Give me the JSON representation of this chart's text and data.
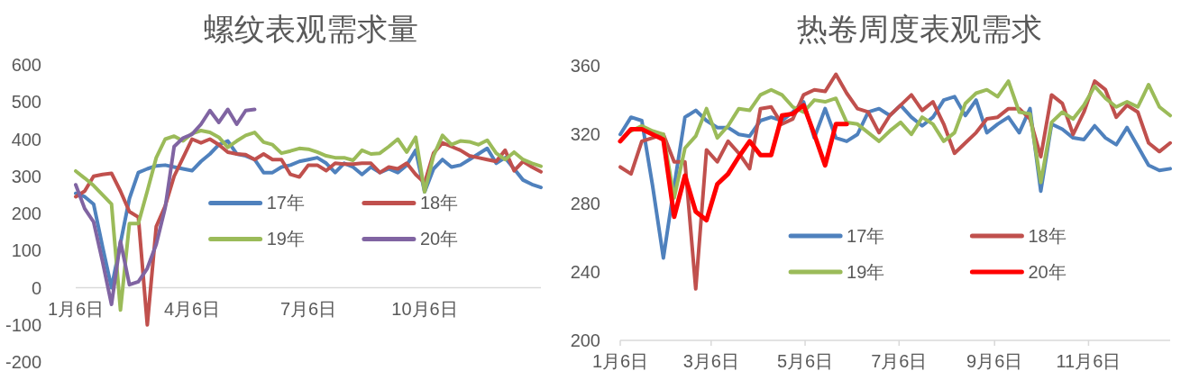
{
  "chart_data": [
    {
      "type": "line",
      "title": "螺纹表观需求量",
      "categories": [
        "1月6日",
        null,
        null,
        null,
        null,
        null,
        null,
        null,
        null,
        null,
        null,
        null,
        null,
        "4月6日",
        null,
        null,
        null,
        null,
        null,
        null,
        null,
        null,
        null,
        null,
        null,
        null,
        "7月6日",
        null,
        null,
        null,
        null,
        null,
        null,
        null,
        null,
        null,
        null,
        null,
        null,
        "10月6日",
        null,
        null,
        null,
        null,
        null,
        null,
        null,
        null,
        null,
        null,
        null,
        null,
        null
      ],
      "ylim": [
        -200,
        600
      ],
      "yticks": [
        -200,
        -100,
        0,
        100,
        200,
        300,
        400,
        500,
        600
      ],
      "legend": "right",
      "line_style": "solid",
      "series": [
        {
          "name": "17年",
          "color": "#4f81bd",
          "values": [
            254,
            245,
            225,
            110,
            0,
            120,
            240,
            310,
            320,
            328,
            330,
            325,
            320,
            315,
            340,
            360,
            385,
            395,
            360,
            355,
            345,
            310,
            310,
            325,
            330,
            340,
            345,
            350,
            335,
            310,
            335,
            325,
            305,
            325,
            310,
            320,
            310,
            330,
            370,
            258,
            320,
            345,
            325,
            330,
            345,
            360,
            375,
            335,
            350,
            320,
            290,
            278,
            270
          ]
        },
        {
          "name": "18年",
          "color": "#c0504d",
          "values": [
            245,
            260,
            300,
            305,
            308,
            260,
            205,
            190,
            -100,
            165,
            220,
            300,
            350,
            400,
            390,
            400,
            385,
            365,
            360,
            358,
            345,
            360,
            345,
            345,
            305,
            298,
            330,
            330,
            315,
            335,
            333,
            333,
            335,
            335,
            310,
            325,
            320,
            335,
            305,
            282,
            362,
            390,
            380,
            370,
            355,
            350,
            345,
            340,
            370,
            315,
            340,
            325,
            312
          ]
        },
        {
          "name": "19年",
          "color": "#9bbb59",
          "values": [
            314,
            295,
            275,
            250,
            225,
            -60,
            173,
            173,
            260,
            350,
            400,
            408,
            395,
            415,
            423,
            418,
            405,
            378,
            395,
            410,
            418,
            392,
            385,
            362,
            368,
            375,
            373,
            365,
            355,
            350,
            350,
            343,
            370,
            360,
            362,
            380,
            400,
            365,
            405,
            258,
            355,
            410,
            385,
            395,
            393,
            385,
            397,
            362,
            345,
            365,
            345,
            335,
            327
          ]
        },
        {
          "name": "20年",
          "color": "#8064a2",
          "values": [
            277,
            213,
            177,
            70,
            -45,
            125,
            8,
            16,
            52,
            117,
            215,
            380,
            403,
            413,
            440,
            477,
            445,
            480,
            440,
            477,
            480,
            null,
            null,
            null,
            null,
            null,
            null,
            null,
            null,
            null,
            null,
            null,
            null,
            null,
            null,
            null,
            null,
            null,
            null,
            null,
            null,
            null,
            null,
            null,
            null,
            null,
            null,
            null,
            null,
            null,
            null,
            null,
            null
          ]
        }
      ]
    },
    {
      "type": "line",
      "title": "热卷周度表观需求",
      "x": [
        "--01-06",
        "--01-13",
        "--01-20",
        "--01-27",
        "--02-03",
        "--02-10",
        "--02-17",
        "--02-24",
        "--03-03",
        "--03-10",
        "--03-17",
        "--03-24",
        "--03-31",
        "--04-07",
        "--04-14",
        "--04-21",
        "--04-28",
        "--05-05",
        "--05-12",
        "--05-19",
        "--05-26",
        "--06-02",
        "--06-09",
        "--06-16",
        "--06-23",
        "--06-30",
        "--07-07",
        "--07-14",
        "--07-21",
        "--07-28",
        "--08-04",
        "--08-11",
        "--08-18",
        "--08-25",
        "--09-01",
        "--09-08",
        "--09-15",
        "--09-22",
        "--09-29",
        "--10-06",
        "--10-13",
        "--10-20",
        "--10-27",
        "--11-03",
        "--11-10",
        "--11-17",
        "--11-24",
        "--12-01",
        "--12-08",
        "--12-15",
        "--12-22",
        "--12-29"
      ],
      "xlim": [
        "--01-06",
        "--12-29"
      ],
      "xticks": [
        {
          "value": "--01-06",
          "label": "1月6日"
        },
        {
          "value": "--03-06",
          "label": "3月6日"
        },
        {
          "value": "--05-06",
          "label": "5月6日"
        },
        {
          "value": "--07-06",
          "label": "7月6日"
        },
        {
          "value": "--09-06",
          "label": "9月6日"
        },
        {
          "value": "--11-06",
          "label": "11月6日"
        }
      ],
      "ylim": [
        200,
        360
      ],
      "yticks": [
        200,
        240,
        280,
        320,
        360
      ],
      "legend": "bottom",
      "line_style": "solid",
      "series": [
        {
          "name": "17年",
          "color": "#4f81bd",
          "values": [
            320,
            330,
            328,
            290,
            248,
            290,
            330,
            334,
            328,
            324,
            324,
            320,
            319,
            328,
            330,
            328,
            333,
            339,
            318,
            335,
            318,
            316,
            320,
            333,
            335,
            331,
            337,
            330,
            325,
            330,
            340,
            342,
            331,
            340,
            321,
            326,
            330,
            321,
            335,
            287,
            326,
            323,
            318,
            317,
            325,
            318,
            314,
            324,
            313,
            302,
            299,
            300
          ]
        },
        {
          "name": "18年",
          "color": "#c0504d",
          "values": [
            301,
            297,
            316,
            318,
            320,
            304,
            304,
            230,
            311,
            304,
            316,
            309,
            300,
            335,
            336,
            326,
            329,
            343,
            346,
            345,
            355,
            344,
            335,
            333,
            321,
            331,
            337,
            343,
            334,
            339,
            326,
            309,
            315,
            321,
            329,
            330,
            335,
            335,
            329,
            307,
            343,
            338,
            320,
            333,
            351,
            346,
            330,
            337,
            333,
            315,
            310,
            315
          ]
        },
        {
          "name": "19年",
          "color": "#9bbb59",
          "values": [
            null,
            322,
            325,
            322,
            320,
            283,
            312,
            319,
            335,
            318,
            325,
            335,
            334,
            343,
            346,
            343,
            336,
            333,
            340,
            339,
            341,
            327,
            326,
            321,
            316,
            322,
            327,
            320,
            330,
            326,
            316,
            321,
            338,
            344,
            346,
            342,
            351,
            333,
            332,
            292,
            327,
            333,
            329,
            337,
            348,
            341,
            336,
            339,
            336,
            349,
            336,
            331
          ]
        },
        {
          "name": "20年",
          "color": "#ff0000",
          "values": [
            316,
            323,
            323,
            320,
            317,
            272,
            296,
            275,
            270,
            291,
            297,
            307,
            316,
            308,
            308,
            331,
            332,
            337,
            320,
            302,
            326,
            326,
            null,
            null,
            null,
            null,
            null,
            null,
            null,
            null,
            null,
            null,
            null,
            null,
            null,
            null,
            null,
            null,
            null,
            null,
            null,
            null,
            null,
            null,
            null,
            null,
            null,
            null,
            null,
            null,
            null,
            null
          ]
        }
      ]
    }
  ]
}
